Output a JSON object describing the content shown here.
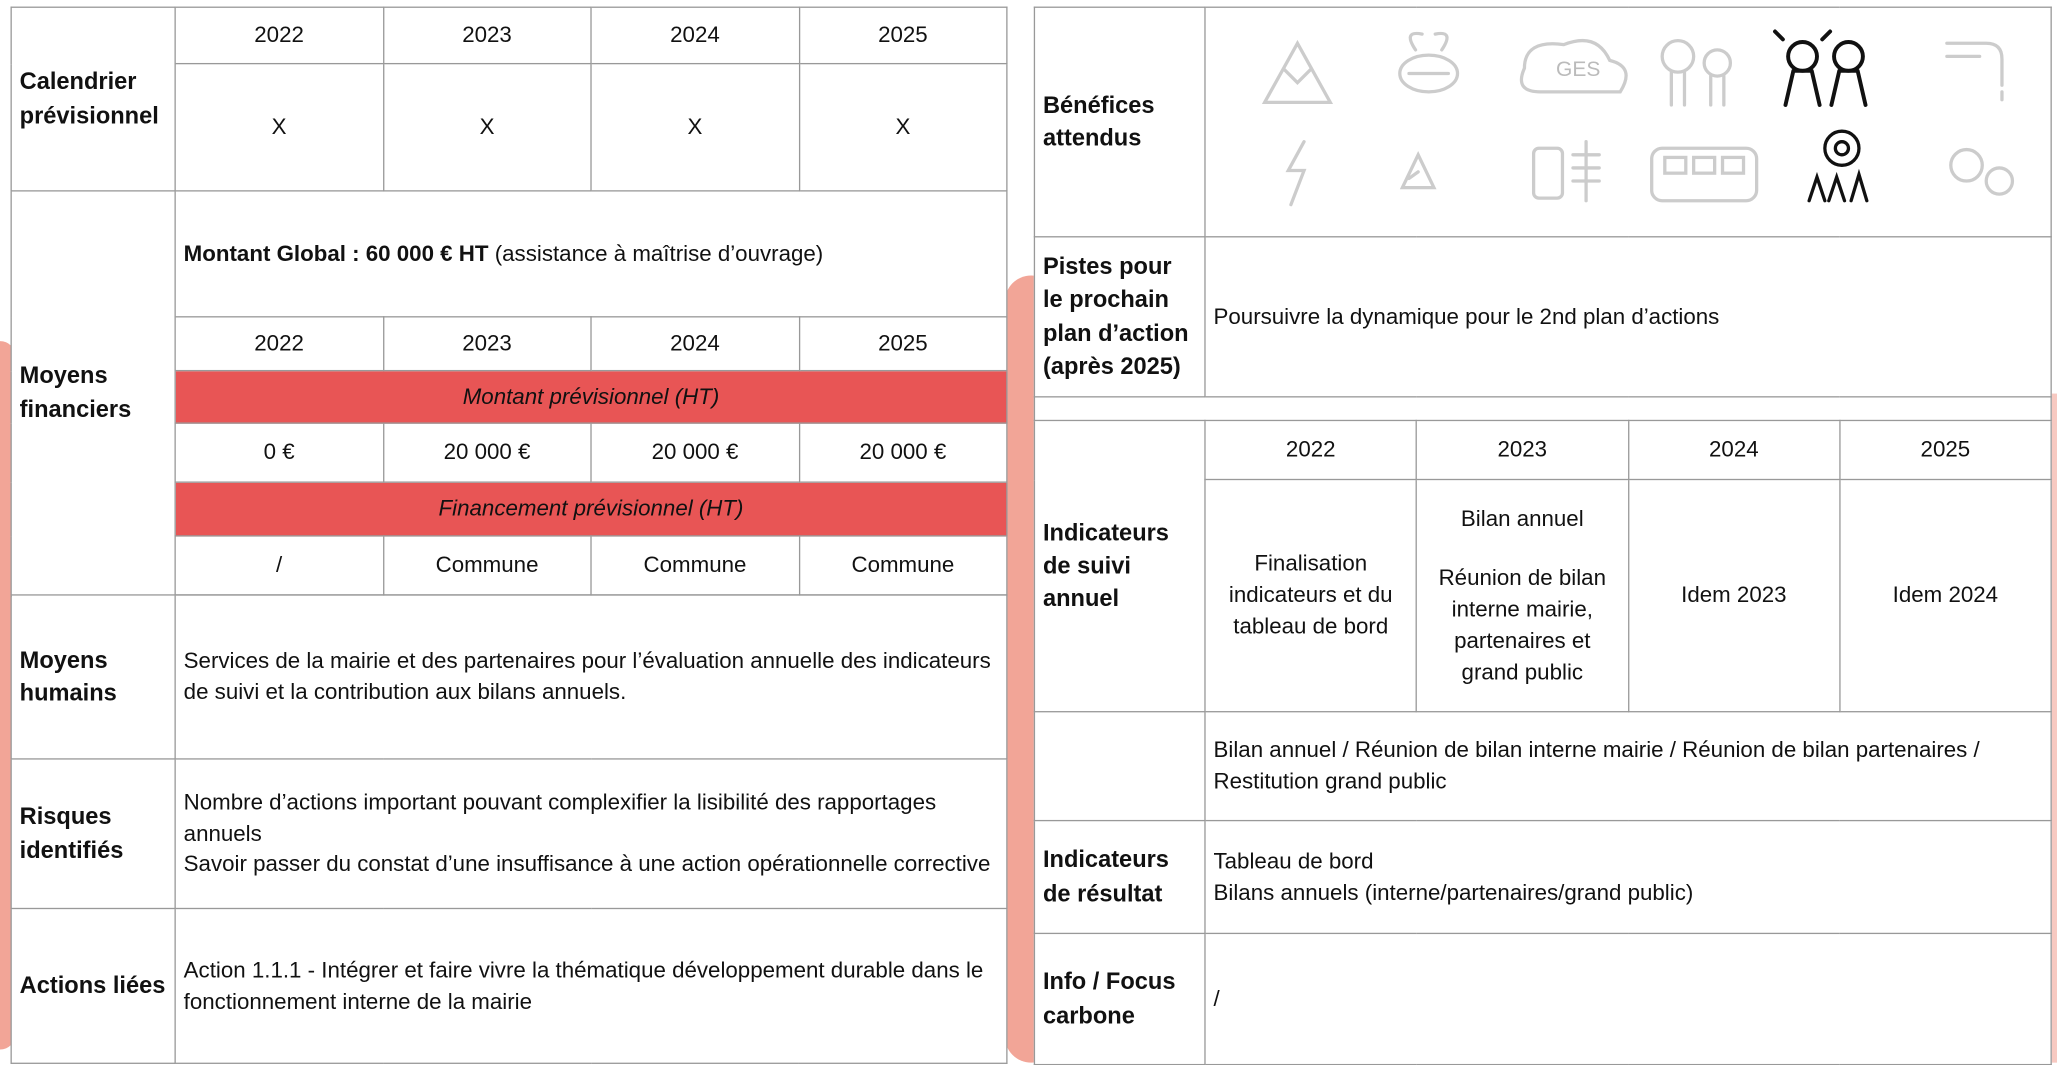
{
  "left": {
    "calendrier": {
      "label": "Calendrier prévisionnel",
      "years": [
        "2022",
        "2023",
        "2024",
        "2025"
      ],
      "values": [
        "X",
        "X",
        "X",
        "X"
      ]
    },
    "moyens_financiers": {
      "label": "Moyens financiers",
      "montant_global": "Montant Global : 60 000 € HT",
      "montant_global_note": "(assistance à maîtrise d’ouvrage)",
      "years": [
        "2022",
        "2023",
        "2024",
        "2025"
      ],
      "montant_header": "Montant prévisionnel (HT)",
      "montants": [
        "0 €",
        "20 000 €",
        "20 000 €",
        "20 000 €"
      ],
      "financement_header": "Financement prévisionnel (HT)",
      "financements": [
        "/",
        "Commune",
        "Commune",
        "Commune"
      ]
    },
    "moyens_humains": {
      "label": "Moyens humains",
      "text": "Services de la mairie et des partenaires pour l’évaluation annuelle des indicateurs de suivi et la contribution aux bilans annuels."
    },
    "risques": {
      "label": "Risques identifiés",
      "lines": [
        "Nombre d’actions important pouvant complexifier la lisibilité des rapportages annuels",
        "Savoir passer du constat d’une insuffisance à une action opérationnelle corrective"
      ]
    },
    "actions_liees": {
      "label": "Actions liées",
      "text": "Action 1.1.1 - Intégrer et faire vivre la thématique développement durable dans le fonctionnement interne de la mairie"
    }
  },
  "right": {
    "benefices": {
      "label": "Bénéfices attendus",
      "icon_text": "GES"
    },
    "pistes": {
      "label": "Pistes pour le prochain plan d’action (après 2025)",
      "text": "Poursuivre la dynamique pour le 2nd plan d’actions"
    },
    "indicateurs_suivi": {
      "label": "Indicateurs de suivi annuel",
      "years": [
        "2022",
        "2023",
        "2024",
        "2025"
      ],
      "cell_2023": [
        "Bilan annuel",
        "Réunion de bilan interne mairie, partenaires  et grand public"
      ],
      "cells": [
        "Finalisation indicateurs et du tableau de bord",
        "Idem 2023",
        "Idem 2024"
      ]
    },
    "bilans": {
      "text": "Bilan annuel / Réunion de bilan interne mairie / Réunion de bilan partenaires / Restitution grand public"
    },
    "indicateurs_resultat": {
      "label": "Indicateurs de résultat",
      "lines": [
        "Tableau de bord",
        "Bilans annuels (interne/partenaires/grand public)"
      ]
    },
    "info_carbone": {
      "label": "Info / Focus carbone",
      "text": "/"
    }
  }
}
